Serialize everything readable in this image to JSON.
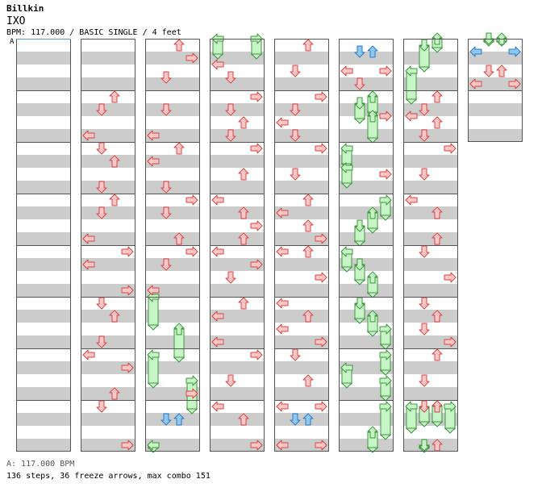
{
  "song": {
    "artist": "Billkin",
    "title": "IXO",
    "meta_line": "BPM: 117.000 / BASIC SINGLE / 4 feet"
  },
  "bpm_marker": {
    "label": "A"
  },
  "footer": {
    "bpm_line": "A: 117.000 BPM",
    "stats_line": "136 steps, 36 freeze arrows, max combo 151"
  },
  "colors": {
    "arrow_red_fill": "#ffc8c8",
    "arrow_red_stroke": "#d24646",
    "arrow_blue_fill": "#8cc8f0",
    "arrow_blue_stroke": "#2f78c4",
    "freeze_fill": "#c8f5c8",
    "freeze_stroke": "#3c963c",
    "stripe": "#cccccc",
    "border": "#555555"
  },
  "chart_data": {
    "type": "stepchart",
    "lanes": [
      "left",
      "down",
      "up",
      "right"
    ],
    "columns": 8,
    "measures_per_column": 8,
    "measures": 58,
    "unit": "1 = one measure (quarter-beat resolution)",
    "notes": [
      {
        "col": 2,
        "t": 0.125,
        "lane": 2
      },
      {
        "col": 2,
        "t": 0.375,
        "lane": 3
      },
      {
        "col": 2,
        "t": 0.75,
        "lane": 1
      },
      {
        "col": 3,
        "t": 0.5,
        "lane": 0
      },
      {
        "col": 3,
        "t": 0.75,
        "lane": 1
      },
      {
        "col": 4,
        "t": 0.125,
        "lane": 2
      },
      {
        "col": 4,
        "t": 0.625,
        "lane": 1
      },
      {
        "col": 5,
        "t": 0.25,
        "lane": 1,
        "color": "blue"
      },
      {
        "col": 5,
        "t": 0.25,
        "lane": 2,
        "color": "blue"
      },
      {
        "col": 5,
        "t": 0.625,
        "lane": 0
      },
      {
        "col": 5,
        "t": 0.625,
        "lane": 3
      },
      {
        "col": 5,
        "t": 0.875,
        "lane": 1
      },
      {
        "col": 6,
        "t": 1.125,
        "lane": 2
      },
      {
        "col": 6,
        "t": 1.5,
        "lane": 0
      },
      {
        "col": 7,
        "t": 0.25,
        "lane": 0,
        "color": "blue"
      },
      {
        "col": 7,
        "t": 0.25,
        "lane": 3,
        "color": "blue"
      },
      {
        "col": 7,
        "t": 0.625,
        "lane": 1
      },
      {
        "col": 7,
        "t": 0.625,
        "lane": 2
      },
      {
        "col": 7,
        "t": 0.875,
        "lane": 0
      },
      {
        "col": 7,
        "t": 0.875,
        "lane": 3
      },
      {
        "col": 1,
        "t": 1.125,
        "lane": 2
      },
      {
        "col": 1,
        "t": 1.375,
        "lane": 1
      },
      {
        "col": 1,
        "t": 1.875,
        "lane": 0
      },
      {
        "col": 1,
        "t": 2.125,
        "lane": 1
      },
      {
        "col": 1,
        "t": 2.375,
        "lane": 2
      },
      {
        "col": 1,
        "t": 2.875,
        "lane": 1
      },
      {
        "col": 1,
        "t": 3.125,
        "lane": 2
      },
      {
        "col": 1,
        "t": 3.375,
        "lane": 1
      },
      {
        "col": 1,
        "t": 3.875,
        "lane": 0
      },
      {
        "col": 1,
        "t": 4.125,
        "lane": 3
      },
      {
        "col": 1,
        "t": 4.375,
        "lane": 0
      },
      {
        "col": 1,
        "t": 4.875,
        "lane": 3
      },
      {
        "col": 1,
        "t": 5.125,
        "lane": 1
      },
      {
        "col": 1,
        "t": 5.375,
        "lane": 2
      },
      {
        "col": 1,
        "t": 5.875,
        "lane": 1
      },
      {
        "col": 1,
        "t": 6.125,
        "lane": 0
      },
      {
        "col": 1,
        "t": 6.375,
        "lane": 3
      },
      {
        "col": 1,
        "t": 6.875,
        "lane": 2
      },
      {
        "col": 1,
        "t": 7.125,
        "lane": 1
      },
      {
        "col": 1,
        "t": 7.875,
        "lane": 3
      },
      {
        "col": 2,
        "t": 1.375,
        "lane": 1
      },
      {
        "col": 2,
        "t": 1.875,
        "lane": 0
      },
      {
        "col": 2,
        "t": 2.125,
        "lane": 2
      },
      {
        "col": 2,
        "t": 2.375,
        "lane": 0
      },
      {
        "col": 2,
        "t": 2.875,
        "lane": 1
      },
      {
        "col": 2,
        "t": 3.125,
        "lane": 3
      },
      {
        "col": 2,
        "t": 3.375,
        "lane": 1
      },
      {
        "col": 2,
        "t": 3.875,
        "lane": 2
      },
      {
        "col": 2,
        "t": 4.125,
        "lane": 3
      },
      {
        "col": 2,
        "t": 4.375,
        "lane": 1
      },
      {
        "col": 2,
        "t": 4.875,
        "lane": 0
      },
      {
        "col": 2,
        "t": 6.875,
        "lane": 3
      },
      {
        "col": 2,
        "t": 7.375,
        "lane": 1,
        "color": "blue"
      },
      {
        "col": 2,
        "t": 7.375,
        "lane": 2,
        "color": "blue"
      },
      {
        "col": 3,
        "t": 1.125,
        "lane": 3
      },
      {
        "col": 3,
        "t": 1.375,
        "lane": 1
      },
      {
        "col": 3,
        "t": 1.625,
        "lane": 2
      },
      {
        "col": 3,
        "t": 1.875,
        "lane": 1
      },
      {
        "col": 3,
        "t": 2.125,
        "lane": 3
      },
      {
        "col": 3,
        "t": 2.625,
        "lane": 2
      },
      {
        "col": 3,
        "t": 3.125,
        "lane": 0
      },
      {
        "col": 3,
        "t": 3.375,
        "lane": 2
      },
      {
        "col": 3,
        "t": 3.625,
        "lane": 3
      },
      {
        "col": 3,
        "t": 3.875,
        "lane": 2
      },
      {
        "col": 3,
        "t": 4.125,
        "lane": 0
      },
      {
        "col": 3,
        "t": 4.375,
        "lane": 3
      },
      {
        "col": 3,
        "t": 4.625,
        "lane": 1
      },
      {
        "col": 3,
        "t": 5.125,
        "lane": 2
      },
      {
        "col": 3,
        "t": 5.375,
        "lane": 0
      },
      {
        "col": 3,
        "t": 5.875,
        "lane": 0
      },
      {
        "col": 3,
        "t": 6.125,
        "lane": 3
      },
      {
        "col": 3,
        "t": 6.625,
        "lane": 1
      },
      {
        "col": 3,
        "t": 7.125,
        "lane": 0
      },
      {
        "col": 3,
        "t": 7.375,
        "lane": 2
      },
      {
        "col": 3,
        "t": 7.875,
        "lane": 3
      },
      {
        "col": 4,
        "t": 1.125,
        "lane": 3
      },
      {
        "col": 4,
        "t": 1.375,
        "lane": 1
      },
      {
        "col": 4,
        "t": 1.625,
        "lane": 0
      },
      {
        "col": 4,
        "t": 1.875,
        "lane": 1
      },
      {
        "col": 4,
        "t": 2.125,
        "lane": 3
      },
      {
        "col": 4,
        "t": 2.625,
        "lane": 1
      },
      {
        "col": 4,
        "t": 3.125,
        "lane": 2
      },
      {
        "col": 4,
        "t": 3.375,
        "lane": 0
      },
      {
        "col": 4,
        "t": 3.625,
        "lane": 2
      },
      {
        "col": 4,
        "t": 3.875,
        "lane": 3
      },
      {
        "col": 4,
        "t": 4.125,
        "lane": 0
      },
      {
        "col": 4,
        "t": 4.125,
        "lane": 2
      },
      {
        "col": 4,
        "t": 4.625,
        "lane": 3
      },
      {
        "col": 4,
        "t": 5.125,
        "lane": 0
      },
      {
        "col": 4,
        "t": 5.375,
        "lane": 2
      },
      {
        "col": 4,
        "t": 5.625,
        "lane": 0
      },
      {
        "col": 4,
        "t": 5.875,
        "lane": 3
      },
      {
        "col": 4,
        "t": 6.125,
        "lane": 1
      },
      {
        "col": 4,
        "t": 6.625,
        "lane": 2
      },
      {
        "col": 4,
        "t": 7.125,
        "lane": 0
      },
      {
        "col": 4,
        "t": 7.125,
        "lane": 3
      },
      {
        "col": 4,
        "t": 7.375,
        "lane": 1,
        "color": "blue"
      },
      {
        "col": 4,
        "t": 7.375,
        "lane": 2,
        "color": "blue"
      },
      {
        "col": 4,
        "t": 7.875,
        "lane": 0
      },
      {
        "col": 4,
        "t": 7.875,
        "lane": 3
      },
      {
        "col": 5,
        "t": 1.5,
        "lane": 3
      },
      {
        "col": 5,
        "t": 2.625,
        "lane": 3
      },
      {
        "col": 6,
        "t": 1.125,
        "lane": 2
      },
      {
        "col": 6,
        "t": 1.375,
        "lane": 1
      },
      {
        "col": 6,
        "t": 1.625,
        "lane": 2
      },
      {
        "col": 6,
        "t": 1.875,
        "lane": 1
      },
      {
        "col": 6,
        "t": 2.125,
        "lane": 3
      },
      {
        "col": 6,
        "t": 2.625,
        "lane": 1
      },
      {
        "col": 6,
        "t": 3.125,
        "lane": 0
      },
      {
        "col": 6,
        "t": 3.375,
        "lane": 2
      },
      {
        "col": 6,
        "t": 3.875,
        "lane": 2
      },
      {
        "col": 6,
        "t": 4.125,
        "lane": 1
      },
      {
        "col": 6,
        "t": 4.625,
        "lane": 3
      },
      {
        "col": 6,
        "t": 5.125,
        "lane": 1
      },
      {
        "col": 6,
        "t": 5.375,
        "lane": 2
      },
      {
        "col": 6,
        "t": 5.625,
        "lane": 1
      },
      {
        "col": 6,
        "t": 5.875,
        "lane": 3
      },
      {
        "col": 6,
        "t": 6.125,
        "lane": 2
      },
      {
        "col": 6,
        "t": 6.625,
        "lane": 1
      },
      {
        "col": 6,
        "t": 7.125,
        "lane": 1
      },
      {
        "col": 6,
        "t": 7.125,
        "lane": 2
      },
      {
        "col": 6,
        "t": 7.875,
        "lane": 2
      }
    ],
    "freezes": [
      {
        "col": 3,
        "t_start": 0.0,
        "t_end": 0.375,
        "lane": 0
      },
      {
        "col": 3,
        "t_start": 0.0,
        "t_end": 0.375,
        "lane": 3
      },
      {
        "col": 6,
        "t_start": 0.0,
        "t_end": 0.25,
        "lane": 2
      },
      {
        "col": 6,
        "t_start": 0.125,
        "t_end": 0.625,
        "lane": 1
      },
      {
        "col": 6,
        "t_start": 0.625,
        "t_end": 1.25,
        "lane": 0
      },
      {
        "col": 7,
        "t_start": 0.0,
        "t_end": 0.125,
        "lane": 1
      },
      {
        "col": 7,
        "t_start": 0.0,
        "t_end": 0.125,
        "lane": 2
      },
      {
        "col": 5,
        "t_start": 1.125,
        "t_end": 1.5,
        "lane": 2
      },
      {
        "col": 5,
        "t_start": 1.25,
        "t_end": 1.625,
        "lane": 1
      },
      {
        "col": 5,
        "t_start": 1.5,
        "t_end": 2.0,
        "lane": 2
      },
      {
        "col": 5,
        "t_start": 2.125,
        "t_end": 2.5,
        "lane": 0
      },
      {
        "col": 5,
        "t_start": 2.5,
        "t_end": 2.875,
        "lane": 0
      },
      {
        "col": 5,
        "t_start": 3.125,
        "t_end": 3.5,
        "lane": 3
      },
      {
        "col": 5,
        "t_start": 3.375,
        "t_end": 3.75,
        "lane": 2
      },
      {
        "col": 5,
        "t_start": 3.625,
        "t_end": 4.0,
        "lane": 1
      },
      {
        "col": 5,
        "t_start": 4.125,
        "t_end": 4.5,
        "lane": 0
      },
      {
        "col": 5,
        "t_start": 4.375,
        "t_end": 4.75,
        "lane": 1
      },
      {
        "col": 5,
        "t_start": 4.625,
        "t_end": 5.0,
        "lane": 2
      },
      {
        "col": 5,
        "t_start": 5.125,
        "t_end": 5.5,
        "lane": 1
      },
      {
        "col": 5,
        "t_start": 5.375,
        "t_end": 5.75,
        "lane": 2
      },
      {
        "col": 5,
        "t_start": 5.625,
        "t_end": 6.0,
        "lane": 3
      },
      {
        "col": 5,
        "t_start": 6.125,
        "t_end": 6.5,
        "lane": 3
      },
      {
        "col": 5,
        "t_start": 6.375,
        "t_end": 6.75,
        "lane": 0
      },
      {
        "col": 5,
        "t_start": 6.625,
        "t_end": 7.0,
        "lane": 3
      },
      {
        "col": 5,
        "t_start": 7.125,
        "t_end": 7.75,
        "lane": 3
      },
      {
        "col": 5,
        "t_start": 7.625,
        "t_end": 8.0,
        "lane": 2
      },
      {
        "col": 2,
        "t_start": 5.0,
        "t_end": 5.625,
        "lane": 0
      },
      {
        "col": 2,
        "t_start": 5.625,
        "t_end": 6.25,
        "lane": 2
      },
      {
        "col": 2,
        "t_start": 6.125,
        "t_end": 6.75,
        "lane": 0
      },
      {
        "col": 2,
        "t_start": 6.625,
        "t_end": 7.25,
        "lane": 3
      },
      {
        "col": 2,
        "t_start": 7.875,
        "t_end": 8.0,
        "lane": 0
      },
      {
        "col": 6,
        "t_start": 7.125,
        "t_end": 7.625,
        "lane": 0
      },
      {
        "col": 6,
        "t_start": 7.125,
        "t_end": 7.5,
        "lane": 1
      },
      {
        "col": 6,
        "t_start": 7.125,
        "t_end": 7.5,
        "lane": 2
      },
      {
        "col": 6,
        "t_start": 7.125,
        "t_end": 7.625,
        "lane": 3
      },
      {
        "col": 6,
        "t_start": 7.875,
        "t_end": 8.0,
        "lane": 1
      }
    ]
  }
}
